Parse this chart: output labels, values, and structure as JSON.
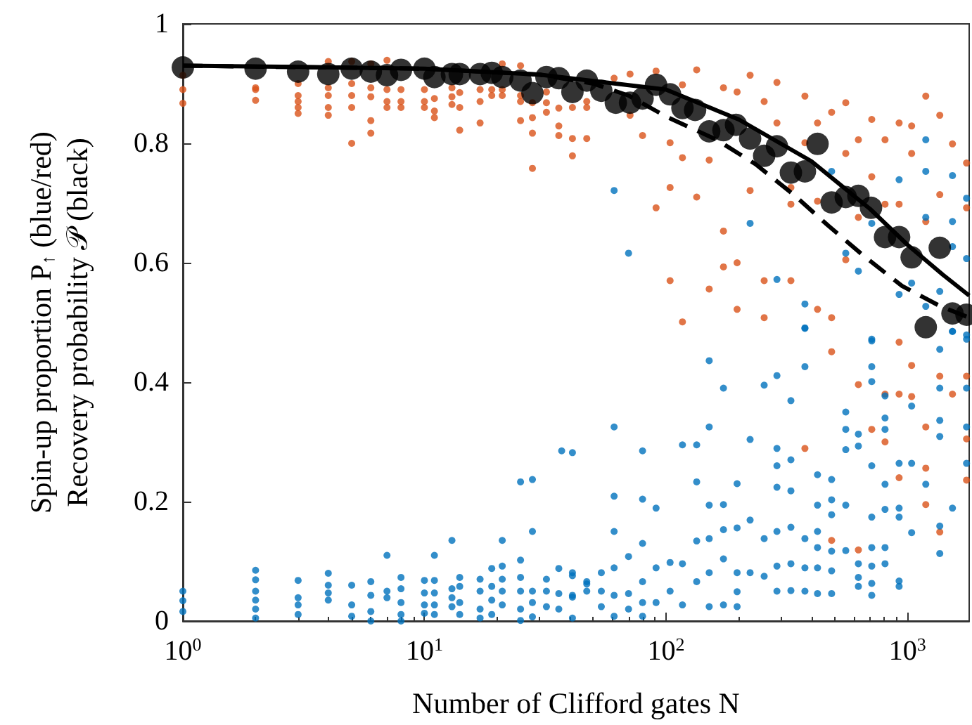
{
  "chart_data": {
    "type": "scatter",
    "xlabel": "Number of Clifford gates N",
    "ylabel": "Spin-up proportion P$_{↑}$ (blue/red)\nRecovery probability 𝒫 (black)",
    "log": "x",
    "xlim": [
      1,
      1800
    ],
    "xticks": [
      {
        "value": 1,
        "label": "10$^{0}$"
      },
      {
        "value": 10,
        "label": "10$^{1}$"
      },
      {
        "value": 100,
        "label": "10$^{2}$"
      },
      {
        "value": 1000,
        "label": "10$^{3}$"
      }
    ],
    "ylim": [
      0,
      1
    ],
    "yticks": [
      0,
      0.2,
      0.4,
      0.6,
      0.8,
      1
    ],
    "grid": false,
    "marker": "circle",
    "series": [
      {
        "color": "#d95319",
        "x": [
          1,
          1,
          1,
          2,
          2,
          2,
          3,
          3,
          3,
          3,
          3,
          4,
          4,
          4,
          4,
          4,
          5,
          5,
          5,
          5,
          5,
          6,
          6,
          6,
          6,
          6,
          7,
          7,
          7,
          7,
          8,
          8,
          8,
          10,
          10,
          10,
          11,
          11,
          11,
          13,
          13,
          13,
          14,
          14,
          14,
          17,
          17,
          17,
          19,
          19,
          21,
          21,
          21,
          25,
          25,
          25,
          25,
          28,
          28,
          28,
          28,
          32,
          32,
          32,
          36,
          36,
          36,
          41,
          41,
          41,
          47,
          47,
          47,
          61,
          71,
          71,
          80,
          91,
          104,
          104,
          91,
          117,
          117,
          134,
          134,
          151,
          173,
          173,
          173,
          197,
          197,
          223,
          223,
          255,
          255,
          288,
          288,
          329,
          376,
          376,
          424,
          424,
          485,
          485,
          555,
          555,
          555,
          626,
          626,
          711,
          711,
          807,
          807,
          923,
          923,
          923,
          1040,
          1040,
          1190,
          1190,
          1360,
          1360,
          1535,
          1755,
          1755,
          329,
          104,
          117,
          197,
          255,
          329,
          424,
          151,
          485,
          376,
          485,
          626,
          626,
          711,
          807,
          807,
          923,
          923,
          1040,
          1040,
          1190,
          1190,
          1190,
          1360,
          1360,
          1535,
          1755,
          1755,
          1755
        ],
        "values": [
          0.914,
          0.89,
          0.867,
          0.893,
          0.89,
          0.872,
          0.9,
          0.88,
          0.87,
          0.86,
          0.85,
          0.937,
          0.893,
          0.88,
          0.86,
          0.847,
          0.937,
          0.9,
          0.88,
          0.86,
          0.8,
          0.933,
          0.893,
          0.878,
          0.838,
          0.817,
          0.939,
          0.89,
          0.87,
          0.86,
          0.89,
          0.87,
          0.86,
          0.89,
          0.87,
          0.86,
          0.875,
          0.854,
          0.843,
          0.893,
          0.878,
          0.865,
          0.885,
          0.86,
          0.822,
          0.89,
          0.87,
          0.834,
          0.88,
          0.89,
          0.933,
          0.89,
          0.88,
          0.93,
          0.88,
          0.87,
          0.838,
          0.868,
          0.843,
          0.817,
          0.758,
          0.886,
          0.868,
          0.852,
          0.859,
          0.829,
          0.813,
          0.86,
          0.808,
          0.779,
          0.87,
          0.86,
          0.808,
          0.909,
          0.916,
          0.847,
          0.813,
          0.921,
          0.801,
          0.726,
          0.692,
          0.898,
          0.776,
          0.923,
          0.71,
          0.772,
          0.893,
          0.653,
          0.593,
          0.886,
          0.6,
          0.914,
          0.721,
          0.87,
          0.508,
          0.902,
          0.834,
          0.726,
          0.879,
          0.801,
          0.834,
          0.703,
          0.852,
          0.508,
          0.868,
          0.783,
          0.605,
          0.806,
          0.676,
          0.84,
          0.744,
          0.806,
          0.698,
          0.834,
          0.698,
          0.467,
          0.829,
          0.783,
          0.879,
          0.669,
          0.847,
          0.714,
          0.799,
          0.767,
          0.692,
          0.698,
          0.57,
          0.501,
          0.522,
          0.57,
          0.57,
          0.522,
          0.556,
          0.451,
          0.289,
          0.135,
          0.119,
          0.396,
          0.321,
          0.38,
          0.3,
          0.38,
          0.24,
          0.428,
          0.376,
          0.325,
          0.256,
          0.195,
          0.41,
          0.149,
          0.38,
          0.41,
          0.305,
          0.236
        ]
      },
      {
        "color": "#0072bd",
        "x": [
          1,
          1,
          1,
          2,
          2,
          2,
          2,
          2,
          2,
          3,
          3,
          3,
          3,
          4,
          4,
          4,
          4,
          5,
          5,
          5,
          6,
          6,
          6,
          6,
          7,
          7,
          7,
          8,
          8,
          8,
          8,
          8,
          10,
          10,
          10,
          10,
          11,
          11,
          11,
          11,
          11,
          13,
          13,
          13,
          13,
          14,
          14,
          14,
          14,
          17,
          17,
          17,
          17,
          19,
          19,
          19,
          19,
          21,
          21,
          21,
          21,
          21,
          25,
          25,
          25,
          25,
          25,
          25,
          28,
          28,
          28,
          28,
          28,
          32,
          32,
          32,
          36,
          36,
          36,
          41,
          41,
          41,
          41,
          47,
          47,
          37,
          41,
          41,
          47,
          54,
          54,
          54,
          61,
          61,
          61,
          61,
          61,
          61,
          70,
          70,
          70,
          80,
          80,
          80,
          80,
          80,
          80,
          91,
          91,
          91,
          104,
          104,
          117,
          117,
          117,
          134,
          134,
          134,
          134,
          151,
          151,
          151,
          151,
          151,
          151,
          173,
          173,
          173,
          173,
          173,
          197,
          197,
          197,
          197,
          197,
          223,
          223,
          223,
          255,
          255,
          255,
          288,
          288,
          288,
          288,
          288,
          288,
          288,
          329,
          329,
          329,
          329,
          329,
          329,
          376,
          376,
          376,
          376,
          376,
          424,
          424,
          424,
          424,
          424,
          424,
          485,
          485,
          485,
          485,
          485,
          485,
          555,
          555,
          555,
          555,
          555,
          626,
          626,
          626,
          626,
          626,
          711,
          711,
          711,
          711,
          711,
          711,
          711,
          711,
          711,
          807,
          807,
          807,
          807,
          807,
          807,
          807,
          923,
          923,
          923,
          923,
          923,
          1040,
          1040,
          1040,
          1190,
          1360,
          1360,
          1360,
          1360,
          1360,
          1360,
          1535,
          1535,
          1755,
          1755,
          1755,
          1755,
          61,
          70,
          223,
          288,
          376,
          485,
          555,
          626,
          711,
          923,
          923,
          1040,
          1190,
          1190,
          1190,
          1360,
          1535,
          1535,
          1535,
          1535,
          1755,
          1755,
          1755,
          376,
          711,
          1190
        ],
        "values": [
          0.05,
          0.034,
          0.016,
          0.085,
          0.069,
          0.05,
          0.035,
          0.02,
          0.005,
          0.068,
          0.039,
          0.027,
          0.011,
          0.08,
          0.06,
          0.047,
          0.035,
          0.06,
          0.027,
          0.008,
          0.066,
          0.043,
          0.016,
          0,
          0.11,
          0.05,
          0.039,
          0.073,
          0.054,
          0.031,
          0.011,
          0,
          0.068,
          0.047,
          0.027,
          0.013,
          0.11,
          0.068,
          0.047,
          0.027,
          0.011,
          0.135,
          0.054,
          0.039,
          0.024,
          0.073,
          0.058,
          0.031,
          0.011,
          0.07,
          0.05,
          0.02,
          0.005,
          0.088,
          0.058,
          0.035,
          0.011,
          0.135,
          0.092,
          0.07,
          0.05,
          0.027,
          0.233,
          0.102,
          0.073,
          0.05,
          0.02,
          0.001,
          0.237,
          0.15,
          0.05,
          0.031,
          0.007,
          0.07,
          0.05,
          0.024,
          0.088,
          0.046,
          0.02,
          0.282,
          0.076,
          0.04,
          0.005,
          0.066,
          0.05,
          0.285,
          0.081,
          0.043,
          0.062,
          0.081,
          0.05,
          0.024,
          0.325,
          0.209,
          0.15,
          0.089,
          0.043,
          0.008,
          0.108,
          0.046,
          0.02,
          0.285,
          0.204,
          0.13,
          0.066,
          0.031,
          0.008,
          0.189,
          0.089,
          0.031,
          0.098,
          0.05,
          0.295,
          0.096,
          0.027,
          0.295,
          0.233,
          0.134,
          0.066,
          0.436,
          0.325,
          0.194,
          0.138,
          0.081,
          0.024,
          0.39,
          0.195,
          0.153,
          0.104,
          0.027,
          0.23,
          0.156,
          0.081,
          0.049,
          0.024,
          0.304,
          0.169,
          0.081,
          0.395,
          0.138,
          0.075,
          0.411,
          0.289,
          0.26,
          0.224,
          0.15,
          0.092,
          0.05,
          0.369,
          0.27,
          0.218,
          0.157,
          0.096,
          0.051,
          0.491,
          0.426,
          0.138,
          0.089,
          0.05,
          0.245,
          0.194,
          0.15,
          0.123,
          0.089,
          0.046,
          0.237,
          0.203,
          0.178,
          0.117,
          0.084,
          0.046,
          0.35,
          0.321,
          0.287,
          0.194,
          0.118,
          0.313,
          0.293,
          0.096,
          0.073,
          0.058,
          0.472,
          0.426,
          0.401,
          0.26,
          0.174,
          0.123,
          0.092,
          0.063,
          0.043,
          0.377,
          0.34,
          0.321,
          0.229,
          0.187,
          0.123,
          0.096,
          0.264,
          0.189,
          0.174,
          0.067,
          0.058,
          0.36,
          0.264,
          0.148,
          0.229,
          0.455,
          0.39,
          0.336,
          0.309,
          0.159,
          0.113,
          0.485,
          0.189,
          0.479,
          0.39,
          0.325,
          0.264,
          0.721,
          0.616,
          0.666,
          0.572,
          0.531,
          0.753,
          0.616,
          0.586,
          0.666,
          0.739,
          0.547,
          0.566,
          0.753,
          0.676,
          0.527,
          0.552,
          0.746,
          0.669,
          0.627,
          0.485,
          0.708,
          0.607,
          0.472,
          0.49,
          0.469,
          0.806
        ]
      },
      {
        "type": "line",
        "color": "#000000",
        "marker": "none",
        "line_style": "solid",
        "x": [
          1,
          3,
          10,
          30,
          100,
          200,
          400,
          700,
          1000,
          1400,
          1800
        ],
        "values": [
          0.93,
          0.928,
          0.925,
          0.915,
          0.89,
          0.84,
          0.77,
          0.69,
          0.63,
          0.58,
          0.545
        ]
      },
      {
        "type": "line",
        "color": "#000000",
        "marker": "none",
        "line_style": "dashed",
        "x": [
          1,
          10,
          30,
          50,
          70,
          100,
          162,
          235,
          338,
          470,
          670,
          950,
          1370,
          1800
        ],
        "values": [
          0.93,
          0.925,
          0.915,
          0.9,
          0.88,
          0.845,
          0.806,
          0.765,
          0.714,
          0.662,
          0.609,
          0.561,
          0.527,
          0.508
        ]
      },
      {
        "color": "#000000",
        "x": [
          1,
          2,
          3,
          4,
          5,
          6,
          7,
          8,
          10,
          11,
          13,
          14,
          17,
          19,
          21,
          25,
          28,
          32,
          36,
          41,
          47,
          54,
          62,
          71,
          80,
          91,
          104,
          117,
          132,
          151,
          173,
          195,
          223,
          255,
          288,
          329,
          376,
          424,
          485,
          555,
          626,
          706,
          807,
          923,
          1040,
          1190,
          1360,
          1535,
          1755
        ],
        "values": [
          0.927,
          0.925,
          0.92,
          0.916,
          0.925,
          0.92,
          0.914,
          0.923,
          0.925,
          0.911,
          0.916,
          0.916,
          0.916,
          0.918,
          0.911,
          0.905,
          0.884,
          0.911,
          0.909,
          0.886,
          0.905,
          0.888,
          0.868,
          0.868,
          0.875,
          0.898,
          0.882,
          0.859,
          0.856,
          0.82,
          0.822,
          0.831,
          0.808,
          0.779,
          0.795,
          0.751,
          0.753,
          0.799,
          0.701,
          0.71,
          0.712,
          0.692,
          0.643,
          0.643,
          0.609,
          0.492,
          0.625,
          0.515,
          0.513
        ]
      }
    ]
  }
}
